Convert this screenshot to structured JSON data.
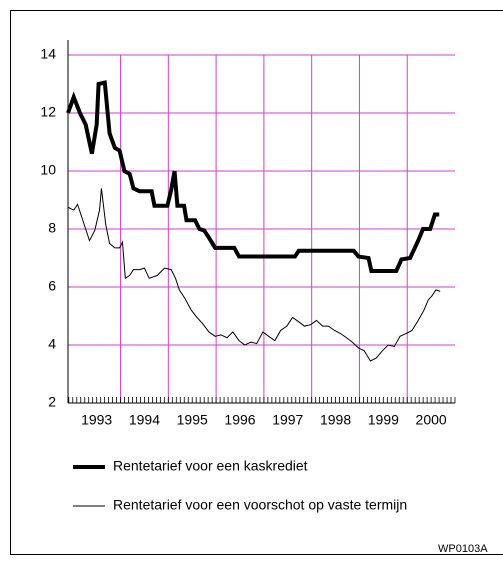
{
  "chart_data": {
    "type": "line",
    "xlim": [
      1992.9,
      2001
    ],
    "ylim": [
      2,
      14
    ],
    "yticks": [
      2,
      4,
      6,
      8,
      10,
      12,
      14
    ],
    "xticks": [
      {
        "value": 1993.5,
        "label": "1993"
      },
      {
        "value": 1994.5,
        "label": "1994"
      },
      {
        "value": 1995.5,
        "label": "1995"
      },
      {
        "value": 1996.5,
        "label": "1996"
      },
      {
        "value": 1997.5,
        "label": "1997"
      },
      {
        "value": 1998.5,
        "label": "1998"
      },
      {
        "value": 1999.5,
        "label": "1999"
      },
      {
        "value": 2000.5,
        "label": "2000"
      }
    ],
    "x_grid": [
      1994,
      1995,
      1996,
      1997,
      1998,
      1999,
      2000
    ],
    "grid": true,
    "grid_color": "#d23fd2",
    "series": [
      {
        "name": "Rentetarief voor een kaskrediet",
        "color": "#000000",
        "width": 4,
        "x": [
          1992.9,
          1993.02,
          1993.15,
          1993.27,
          1993.4,
          1993.5,
          1993.54,
          1993.67,
          1993.77,
          1993.88,
          1993.98,
          1994.08,
          1994.19,
          1994.27,
          1994.4,
          1994.65,
          1994.71,
          1994.98,
          1995.06,
          1995.13,
          1995.19,
          1995.33,
          1995.38,
          1995.56,
          1995.65,
          1995.75,
          1995.85,
          1995.98,
          1996.38,
          1996.48,
          1997.65,
          1997.73,
          1998.88,
          1998.98,
          1999.19,
          1999.25,
          1999.77,
          1999.88,
          2000.06,
          2000.23,
          2000.33,
          2000.48,
          2000.58,
          2000.67
        ],
        "values": [
          12.0,
          12.55,
          12.0,
          11.6,
          10.6,
          11.6,
          13.0,
          13.05,
          11.3,
          10.8,
          10.7,
          10.0,
          9.9,
          9.4,
          9.3,
          9.3,
          8.8,
          8.8,
          9.35,
          10.0,
          8.8,
          8.8,
          8.3,
          8.3,
          8.0,
          7.95,
          7.7,
          7.35,
          7.35,
          7.05,
          7.05,
          7.25,
          7.25,
          7.05,
          7.0,
          6.55,
          6.55,
          6.95,
          7.0,
          7.6,
          8.0,
          8.0,
          8.5,
          8.5
        ]
      },
      {
        "name": "Rentetarief voor een voorschot op vaste termijn",
        "color": "#000000",
        "width": 1,
        "x": [
          1992.9,
          1993.02,
          1993.1,
          1993.25,
          1993.35,
          1993.46,
          1993.56,
          1993.6,
          1993.69,
          1993.77,
          1993.88,
          1993.98,
          1994.04,
          1994.1,
          1994.19,
          1994.27,
          1994.4,
          1994.5,
          1994.6,
          1994.77,
          1994.92,
          1995.06,
          1995.15,
          1995.23,
          1995.35,
          1995.48,
          1995.6,
          1995.71,
          1995.85,
          1995.98,
          1996.1,
          1996.23,
          1996.35,
          1996.48,
          1996.6,
          1996.73,
          1996.85,
          1996.98,
          1997.1,
          1997.23,
          1997.35,
          1997.48,
          1997.6,
          1997.73,
          1997.85,
          1997.98,
          1998.1,
          1998.23,
          1998.35,
          1998.48,
          1998.6,
          1998.73,
          1998.85,
          1998.98,
          1999.1,
          1999.23,
          1999.35,
          1999.48,
          1999.6,
          1999.73,
          1999.85,
          1999.98,
          2000.1,
          2000.23,
          2000.35,
          2000.44,
          2000.52,
          2000.6,
          2000.69
        ],
        "values": [
          8.75,
          8.65,
          8.85,
          8.1,
          7.6,
          7.95,
          8.65,
          9.4,
          8.15,
          7.5,
          7.35,
          7.35,
          7.55,
          6.3,
          6.4,
          6.6,
          6.6,
          6.65,
          6.3,
          6.4,
          6.65,
          6.6,
          6.3,
          5.9,
          5.6,
          5.2,
          4.95,
          4.75,
          4.45,
          4.3,
          4.35,
          4.25,
          4.45,
          4.15,
          4.0,
          4.1,
          4.05,
          4.45,
          4.3,
          4.15,
          4.5,
          4.65,
          4.95,
          4.8,
          4.65,
          4.7,
          4.85,
          4.65,
          4.65,
          4.5,
          4.4,
          4.25,
          4.1,
          3.9,
          3.8,
          3.45,
          3.55,
          3.8,
          4.0,
          3.95,
          4.3,
          4.4,
          4.5,
          4.85,
          5.2,
          5.55,
          5.7,
          5.9,
          5.85
        ]
      }
    ],
    "code": "WP0103A"
  }
}
